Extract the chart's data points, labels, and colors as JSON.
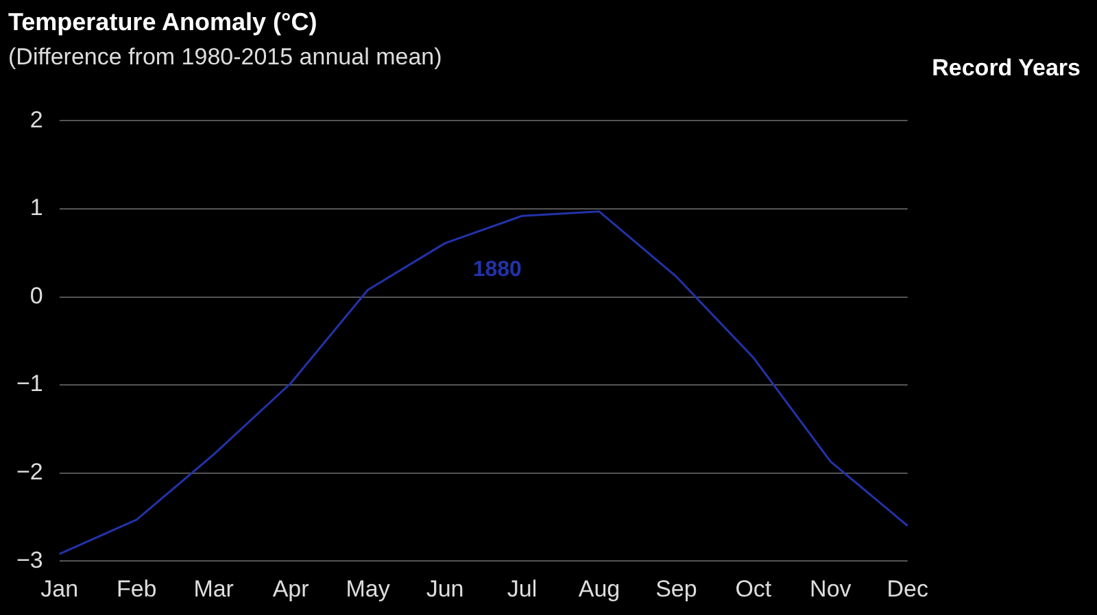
{
  "chart_data": {
    "type": "line",
    "title": "Temperature Anomaly (°C)",
    "subtitle": "(Difference from 1980-2015 annual mean)",
    "annotations": [
      "Record Years"
    ],
    "categories": [
      "Jan",
      "Feb",
      "Mar",
      "Apr",
      "May",
      "Jun",
      "Jul",
      "Aug",
      "Sep",
      "Oct",
      "Nov",
      "Dec"
    ],
    "series": [
      {
        "name": "1880",
        "color": "#2233aa",
        "values": [
          -2.92,
          -2.53,
          -1.79,
          -0.98,
          0.08,
          0.61,
          0.92,
          0.97,
          0.23,
          -0.69,
          -1.87,
          -2.6
        ]
      }
    ],
    "ylim": [
      -3,
      2
    ],
    "yticks": [
      {
        "value": -3,
        "label": "−3"
      },
      {
        "value": -2,
        "label": "−2"
      },
      {
        "value": -1,
        "label": "−1"
      },
      0,
      1,
      2
    ],
    "grid": "y",
    "legend": false,
    "marker": "none",
    "line_style": "solid"
  }
}
